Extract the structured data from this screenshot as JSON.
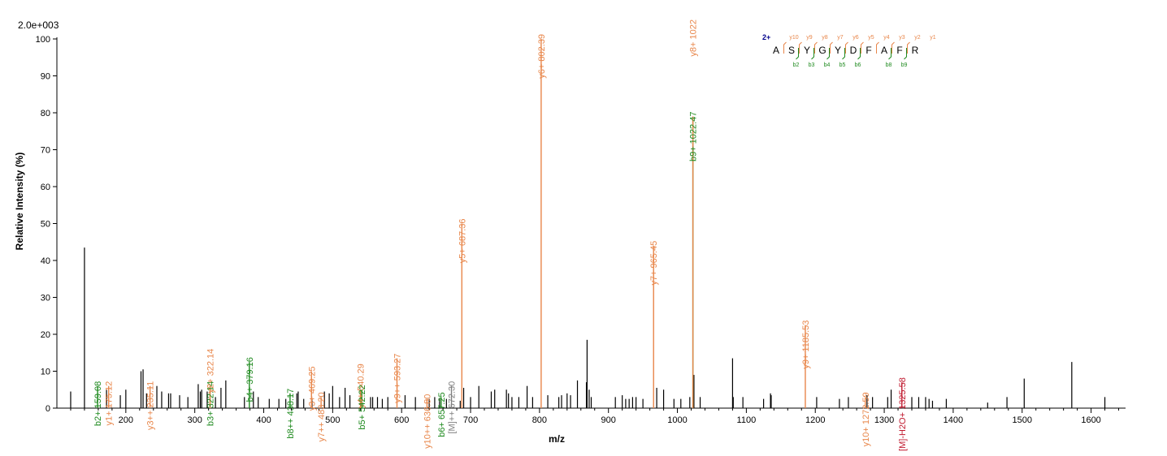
{
  "chart_data": {
    "type": "bar",
    "title": "",
    "scale_label": "2.0e+003",
    "xlabel": "m/z",
    "ylabel": "Relative   Intensity (%)",
    "xlim": [
      100,
      1650
    ],
    "ylim": [
      0,
      100
    ],
    "xticks": [
      200,
      300,
      400,
      500,
      600,
      700,
      800,
      900,
      1000,
      1100,
      1200,
      1300,
      1400,
      1500,
      1600
    ],
    "yticks": [
      0,
      10,
      20,
      30,
      40,
      50,
      60,
      70,
      80,
      90,
      100
    ],
    "grid": false,
    "colors": {
      "b": "#1f8a1f",
      "y": "#e8864a",
      "precursor": "#c0192e",
      "unmatched": "#000000",
      "special": "#808080",
      "charge": "#00008b"
    },
    "annotated_peaks": [
      {
        "mz": 159.08,
        "intensity": 6,
        "label": "b2+ 159.08",
        "kind": "b"
      },
      {
        "mz": 175.12,
        "intensity": 6,
        "label": "y1+ 175.12",
        "kind": "y"
      },
      {
        "mz": 235.11,
        "intensity": 6,
        "label": "y3++ 235.11",
        "kind": "y"
      },
      {
        "mz": 322.14,
        "intensity": 6,
        "label": "b3+ 322.14",
        "kind": "b"
      },
      {
        "mz": 322.14,
        "intensity": 6,
        "label": "y2+ 322.14",
        "kind": "y",
        "label_offset": 40
      },
      {
        "mz": 379.16,
        "intensity": 12.5,
        "label": "b4+ 379.16",
        "kind": "b"
      },
      {
        "mz": 438.17,
        "intensity": 4,
        "label": "b8++ 438.17",
        "kind": "b"
      },
      {
        "mz": 469.25,
        "intensity": 10,
        "label": "y3+ 469.25",
        "kind": "y"
      },
      {
        "mz": 483.2,
        "intensity": 3,
        "label": "y7++ 483.20",
        "kind": "y"
      },
      {
        "mz": 540.29,
        "intensity": 5,
        "label": "y4+ 540.29",
        "kind": "y",
        "label_offset": 26
      },
      {
        "mz": 542.22,
        "intensity": 5,
        "label": "b5+ 542.22",
        "kind": "b"
      },
      {
        "mz": 593.27,
        "intensity": 13.5,
        "label": "y9++ 593.27",
        "kind": "y"
      },
      {
        "mz": 636.8,
        "intensity": 2.5,
        "label": "y10++ 636.80",
        "kind": "y"
      },
      {
        "mz": 657.25,
        "intensity": 3,
        "label": "b6+ 657.25",
        "kind": "b"
      },
      {
        "mz": 672.3,
        "intensity": 6,
        "label": "[M]++ 672.30",
        "kind": "special"
      },
      {
        "mz": 687.36,
        "intensity": 50,
        "label": "y5+ 687.36",
        "kind": "y"
      },
      {
        "mz": 802.39,
        "intensity": 100,
        "label": "y6+ 802.39",
        "kind": "y"
      },
      {
        "mz": 965.45,
        "intensity": 44,
        "label": "y7+ 965.45",
        "kind": "y"
      },
      {
        "mz": 1022.47,
        "intensity": 79,
        "label": "b9+ 1022.47",
        "kind": "b"
      },
      {
        "mz": 1022.47,
        "intensity": 79,
        "label": "y8+ 1022",
        "kind": "y",
        "label_top": true
      },
      {
        "mz": 1185.53,
        "intensity": 22.5,
        "label": "y9+ 1185.53",
        "kind": "y"
      },
      {
        "mz": 1272.59,
        "intensity": 3,
        "label": "y10+ 1272.59",
        "kind": "y"
      },
      {
        "mz": 1325.58,
        "intensity": 7,
        "label": "[M]-H2O+ 1325.58",
        "kind": "precursor"
      }
    ],
    "unlabeled_peaks": [
      [
        120,
        4.5
      ],
      [
        140,
        43.5
      ],
      [
        172,
        5
      ],
      [
        192,
        3.5
      ],
      [
        200,
        5
      ],
      [
        222,
        10
      ],
      [
        225,
        10.5
      ],
      [
        230,
        4
      ],
      [
        245,
        6
      ],
      [
        252,
        4.5
      ],
      [
        262,
        4
      ],
      [
        265,
        4
      ],
      [
        278,
        3.5
      ],
      [
        290,
        3
      ],
      [
        305,
        6.5
      ],
      [
        308,
        4.5
      ],
      [
        310,
        5
      ],
      [
        318,
        4.5
      ],
      [
        330,
        3
      ],
      [
        338,
        5.5
      ],
      [
        345,
        7.5
      ],
      [
        372,
        3
      ],
      [
        385,
        4.5
      ],
      [
        392,
        3
      ],
      [
        408,
        2.5
      ],
      [
        422,
        2.5
      ],
      [
        432,
        2.5
      ],
      [
        448,
        4
      ],
      [
        450,
        4.5
      ],
      [
        458,
        2.5
      ],
      [
        470,
        2.5
      ],
      [
        488,
        4.5
      ],
      [
        495,
        4
      ],
      [
        500,
        6
      ],
      [
        510,
        3
      ],
      [
        518,
        5.5
      ],
      [
        525,
        3.5
      ],
      [
        555,
        3
      ],
      [
        558,
        3
      ],
      [
        565,
        3
      ],
      [
        572,
        2.5
      ],
      [
        580,
        3
      ],
      [
        605,
        3.5
      ],
      [
        620,
        3
      ],
      [
        640,
        2.5
      ],
      [
        648,
        3
      ],
      [
        655,
        2.5
      ],
      [
        665,
        2.5
      ],
      [
        685,
        2
      ],
      [
        690,
        5.5
      ],
      [
        700,
        3
      ],
      [
        712,
        6
      ],
      [
        730,
        4.5
      ],
      [
        735,
        5
      ],
      [
        752,
        5
      ],
      [
        755,
        4
      ],
      [
        760,
        3
      ],
      [
        770,
        3
      ],
      [
        782,
        6
      ],
      [
        790,
        3
      ],
      [
        812,
        3.5
      ],
      [
        828,
        3
      ],
      [
        832,
        3.5
      ],
      [
        840,
        4
      ],
      [
        845,
        3.5
      ],
      [
        855,
        7.5
      ],
      [
        868,
        7
      ],
      [
        869,
        18.5
      ],
      [
        872,
        5
      ],
      [
        875,
        3
      ],
      [
        910,
        3
      ],
      [
        920,
        3.5
      ],
      [
        925,
        2.5
      ],
      [
        930,
        2.5
      ],
      [
        935,
        3
      ],
      [
        940,
        3
      ],
      [
        950,
        2.5
      ],
      [
        970,
        5.5
      ],
      [
        980,
        5
      ],
      [
        995,
        2.5
      ],
      [
        1005,
        2.5
      ],
      [
        1018,
        3
      ],
      [
        1024,
        9
      ],
      [
        1033,
        3
      ],
      [
        1080,
        13.5
      ],
      [
        1081,
        3
      ],
      [
        1095,
        3
      ],
      [
        1125,
        2.5
      ],
      [
        1135,
        4
      ],
      [
        1136,
        3.5
      ],
      [
        1202,
        3
      ],
      [
        1235,
        2.5
      ],
      [
        1248,
        3
      ],
      [
        1275,
        3.5
      ],
      [
        1283,
        3
      ],
      [
        1305,
        3
      ],
      [
        1310,
        5
      ],
      [
        1340,
        3
      ],
      [
        1350,
        3
      ],
      [
        1360,
        3
      ],
      [
        1365,
        2.5
      ],
      [
        1370,
        2
      ],
      [
        1390,
        2.5
      ],
      [
        1450,
        1.5
      ],
      [
        1478,
        3
      ],
      [
        1503,
        8
      ],
      [
        1572,
        12.5
      ],
      [
        1620,
        3
      ]
    ],
    "sequence": {
      "charge": "2+",
      "residues": [
        "A",
        "S",
        "Y",
        "G",
        "Y",
        "D",
        "F",
        "A",
        "F",
        "R"
      ],
      "y_ions": [
        "y10",
        "y9",
        "y8",
        "y7",
        "y6",
        "y5",
        "y4",
        "y3",
        "y2",
        "y1"
      ],
      "b_ions": [
        "b2",
        "b3",
        "b4",
        "b5",
        "b6",
        "b8",
        "b9"
      ],
      "b_positions": [
        1,
        2,
        3,
        4,
        5,
        7,
        8
      ]
    }
  }
}
